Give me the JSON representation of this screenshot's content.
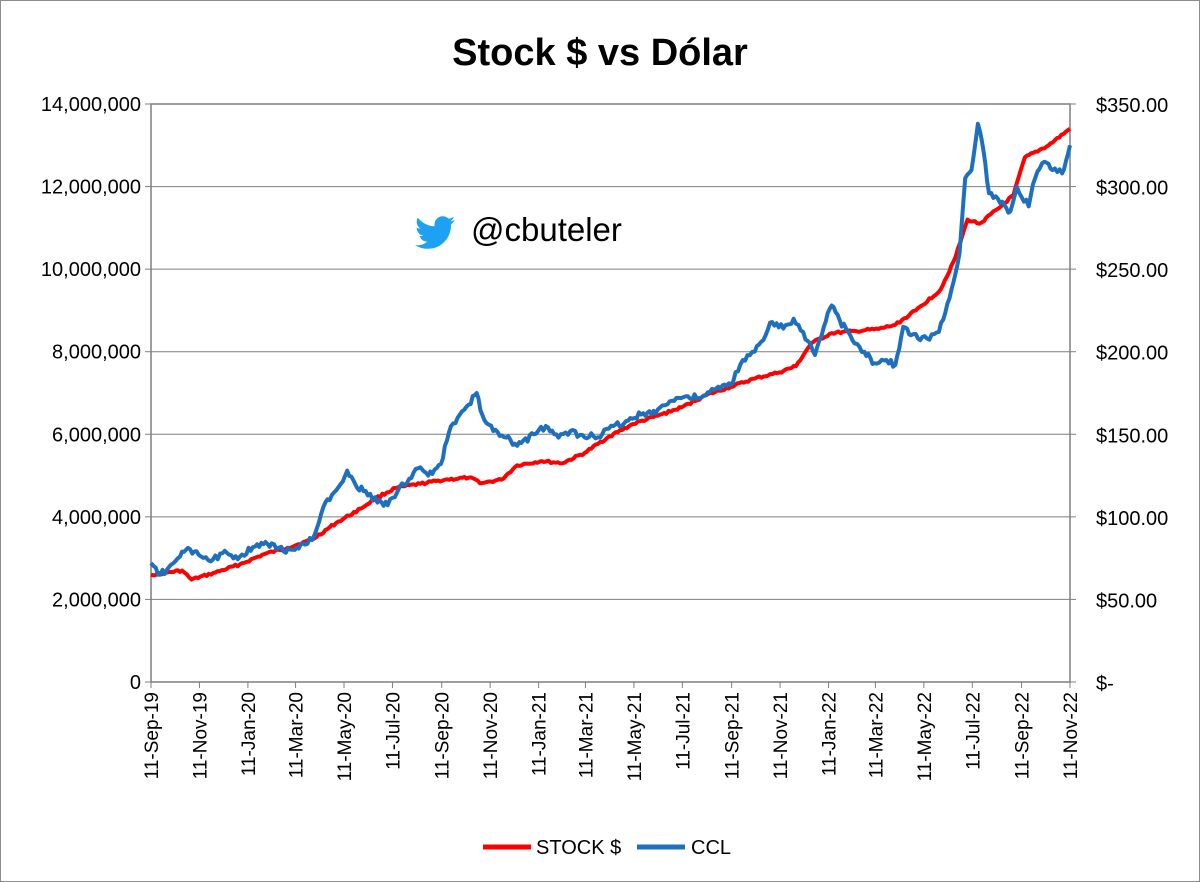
{
  "chart_data": {
    "type": "line",
    "title": "Stock $ vs Dólar",
    "watermark": "@cbuteler",
    "watermark_icon": "twitter-bird-icon",
    "grid": true,
    "legend_position": "bottom",
    "left_axis": {
      "ylim": [
        0,
        14000000
      ],
      "ticks": [
        0,
        2000000,
        4000000,
        6000000,
        8000000,
        10000000,
        12000000,
        14000000
      ],
      "tick_labels": [
        "0",
        "2,000,000",
        "4,000,000",
        "6,000,000",
        "8,000,000",
        "10,000,000",
        "12,000,000",
        "14,000,000"
      ]
    },
    "right_axis": {
      "ylim": [
        0,
        350
      ],
      "ticks": [
        0,
        50,
        100,
        150,
        200,
        250,
        300,
        350
      ],
      "tick_labels": [
        "$-",
        "$50.00",
        "$100.00",
        "$150.00",
        "$200.00",
        "$250.00",
        "$300.00",
        "$350.00"
      ]
    },
    "x_axis": {
      "range": [
        "2019-09-11",
        "2022-11-11"
      ],
      "ticks": [
        "2019-09-11",
        "2019-11-11",
        "2020-01-11",
        "2020-03-11",
        "2020-05-11",
        "2020-07-11",
        "2020-09-11",
        "2020-11-11",
        "2021-01-11",
        "2021-03-11",
        "2021-05-11",
        "2021-07-11",
        "2021-09-11",
        "2021-11-11",
        "2022-01-11",
        "2022-03-11",
        "2022-05-11",
        "2022-07-11",
        "2022-09-11",
        "2022-11-11"
      ],
      "tick_labels": [
        "11-Sep-19",
        "11-Nov-19",
        "11-Jan-20",
        "11-Mar-20",
        "11-May-20",
        "11-Jul-20",
        "11-Sep-20",
        "11-Nov-20",
        "11-Jan-21",
        "11-Mar-21",
        "11-May-21",
        "11-Jul-21",
        "11-Sep-21",
        "11-Nov-21",
        "11-Jan-22",
        "11-Mar-22",
        "11-May-22",
        "11-Jul-22",
        "11-Sep-22",
        "11-Nov-22"
      ]
    },
    "series": [
      {
        "name": "STOCK $",
        "axis": "left",
        "color": "#ff0000",
        "points": [
          [
            "2019-09-11",
            2600000
          ],
          [
            "2019-10-01",
            2650000
          ],
          [
            "2019-10-20",
            2700000
          ],
          [
            "2019-11-01",
            2480000
          ],
          [
            "2019-12-01",
            2650000
          ],
          [
            "2020-01-01",
            2850000
          ],
          [
            "2020-02-01",
            3100000
          ],
          [
            "2020-03-01",
            3250000
          ],
          [
            "2020-04-01",
            3450000
          ],
          [
            "2020-05-01",
            3850000
          ],
          [
            "2020-06-01",
            4200000
          ],
          [
            "2020-06-20",
            4450000
          ],
          [
            "2020-07-15",
            4700000
          ],
          [
            "2020-08-15",
            4800000
          ],
          [
            "2020-09-15",
            4900000
          ],
          [
            "2020-10-15",
            4950000
          ],
          [
            "2020-11-01",
            4820000
          ],
          [
            "2020-11-25",
            4900000
          ],
          [
            "2020-12-15",
            5250000
          ],
          [
            "2021-01-15",
            5350000
          ],
          [
            "2021-02-10",
            5300000
          ],
          [
            "2021-03-10",
            5550000
          ],
          [
            "2021-04-10",
            5950000
          ],
          [
            "2021-05-10",
            6250000
          ],
          [
            "2021-06-10",
            6450000
          ],
          [
            "2021-07-10",
            6650000
          ],
          [
            "2021-08-10",
            6950000
          ],
          [
            "2021-09-10",
            7150000
          ],
          [
            "2021-10-10",
            7350000
          ],
          [
            "2021-11-10",
            7500000
          ],
          [
            "2021-12-01",
            7650000
          ],
          [
            "2021-12-20",
            8200000
          ],
          [
            "2022-01-15",
            8450000
          ],
          [
            "2022-02-15",
            8500000
          ],
          [
            "2022-03-15",
            8550000
          ],
          [
            "2022-04-05",
            8650000
          ],
          [
            "2022-05-01",
            9000000
          ],
          [
            "2022-06-01",
            9500000
          ],
          [
            "2022-06-20",
            10300000
          ],
          [
            "2022-07-05",
            11200000
          ],
          [
            "2022-07-20",
            11100000
          ],
          [
            "2022-08-15",
            11500000
          ],
          [
            "2022-09-01",
            11800000
          ],
          [
            "2022-09-15",
            12700000
          ],
          [
            "2022-10-15",
            13000000
          ],
          [
            "2022-11-11",
            13400000
          ]
        ]
      },
      {
        "name": "CCL",
        "axis": "right",
        "color": "#1f6fbf",
        "points": [
          [
            "2019-09-11",
            72
          ],
          [
            "2019-09-20",
            65
          ],
          [
            "2019-10-01",
            68
          ],
          [
            "2019-10-15",
            75
          ],
          [
            "2019-10-25",
            80
          ],
          [
            "2019-11-10",
            77
          ],
          [
            "2019-11-25",
            73
          ],
          [
            "2019-12-10",
            78
          ],
          [
            "2020-01-01",
            76
          ],
          [
            "2020-01-20",
            82
          ],
          [
            "2020-02-10",
            84
          ],
          [
            "2020-02-25",
            79
          ],
          [
            "2020-03-10",
            80
          ],
          [
            "2020-03-20",
            84
          ],
          [
            "2020-04-01",
            86
          ],
          [
            "2020-04-15",
            106
          ],
          [
            "2020-05-01",
            116
          ],
          [
            "2020-05-15",
            128
          ],
          [
            "2020-05-25",
            120
          ],
          [
            "2020-06-10",
            113
          ],
          [
            "2020-06-25",
            110
          ],
          [
            "2020-07-05",
            107
          ],
          [
            "2020-07-20",
            118
          ],
          [
            "2020-08-01",
            123
          ],
          [
            "2020-08-15",
            130
          ],
          [
            "2020-08-25",
            125
          ],
          [
            "2020-09-10",
            132
          ],
          [
            "2020-09-20",
            151
          ],
          [
            "2020-10-01",
            160
          ],
          [
            "2020-10-15",
            168
          ],
          [
            "2020-10-25",
            175
          ],
          [
            "2020-11-01",
            162
          ],
          [
            "2020-11-15",
            152
          ],
          [
            "2020-12-01",
            148
          ],
          [
            "2020-12-15",
            143
          ],
          [
            "2021-01-05",
            150
          ],
          [
            "2021-01-20",
            155
          ],
          [
            "2021-02-05",
            148
          ],
          [
            "2021-02-20",
            152
          ],
          [
            "2021-03-10",
            148
          ],
          [
            "2021-04-01",
            150
          ],
          [
            "2021-04-15",
            155
          ],
          [
            "2021-05-01",
            158
          ],
          [
            "2021-05-20",
            162
          ],
          [
            "2021-06-10",
            165
          ],
          [
            "2021-06-25",
            170
          ],
          [
            "2021-07-15",
            173
          ],
          [
            "2021-08-01",
            172
          ],
          [
            "2021-08-20",
            177
          ],
          [
            "2021-09-10",
            180
          ],
          [
            "2021-09-25",
            195
          ],
          [
            "2021-10-10",
            200
          ],
          [
            "2021-11-01",
            218
          ],
          [
            "2021-11-15",
            214
          ],
          [
            "2021-11-28",
            220
          ],
          [
            "2021-12-10",
            212
          ],
          [
            "2021-12-25",
            198
          ],
          [
            "2022-01-05",
            215
          ],
          [
            "2022-01-15",
            228
          ],
          [
            "2022-01-25",
            219
          ],
          [
            "2022-02-10",
            207
          ],
          [
            "2022-02-25",
            200
          ],
          [
            "2022-03-10",
            193
          ],
          [
            "2022-03-25",
            195
          ],
          [
            "2022-04-05",
            192
          ],
          [
            "2022-04-15",
            215
          ],
          [
            "2022-04-25",
            210
          ],
          [
            "2022-05-15",
            208
          ],
          [
            "2022-05-30",
            212
          ],
          [
            "2022-06-15",
            238
          ],
          [
            "2022-06-25",
            260
          ],
          [
            "2022-07-02",
            305
          ],
          [
            "2022-07-10",
            310
          ],
          [
            "2022-07-18",
            338
          ],
          [
            "2022-07-25",
            322
          ],
          [
            "2022-08-01",
            296
          ],
          [
            "2022-08-15",
            290
          ],
          [
            "2022-08-28",
            285
          ],
          [
            "2022-09-05",
            300
          ],
          [
            "2022-09-20",
            288
          ],
          [
            "2022-09-28",
            305
          ],
          [
            "2022-10-10",
            315
          ],
          [
            "2022-10-20",
            310
          ],
          [
            "2022-11-01",
            308
          ],
          [
            "2022-11-11",
            325
          ]
        ]
      }
    ]
  }
}
